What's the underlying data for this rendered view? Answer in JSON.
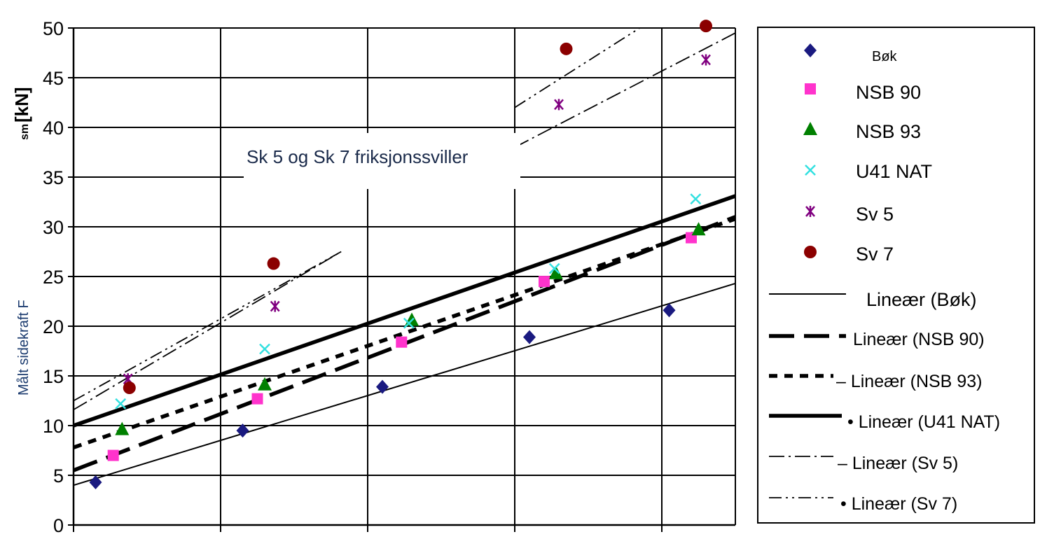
{
  "chart_data": {
    "type": "scatter",
    "ylabel": "Målt sidekraft F",
    "ylabel_sub": "sm",
    "ylabel_unit": "[kN]",
    "ylim": [
      0,
      50
    ],
    "yticks": [
      0,
      5,
      10,
      15,
      20,
      25,
      30,
      35,
      40,
      45,
      50
    ],
    "xlim": [
      0,
      4.5
    ],
    "grid": true,
    "legend_position": "right",
    "annotation": "Sk 5 og Sk 7 friksjonssviller",
    "series": [
      {
        "name": "Bøk",
        "marker": "diamond",
        "color": "#1a1a80",
        "x": [
          0.15,
          1.15,
          2.1,
          3.1,
          4.05
        ],
        "y": [
          4.3,
          9.5,
          13.9,
          18.9,
          21.6
        ]
      },
      {
        "name": "NSB 90",
        "marker": "square",
        "color": "#ff33cc",
        "x": [
          0.27,
          1.25,
          2.23,
          3.2,
          4.2
        ],
        "y": [
          7.0,
          12.7,
          18.4,
          24.5,
          28.9
        ]
      },
      {
        "name": "NSB 93",
        "marker": "triangle",
        "color": "#008000",
        "x": [
          0.33,
          1.3,
          2.3,
          3.28,
          4.25
        ],
        "y": [
          9.6,
          14.1,
          20.6,
          25.3,
          29.7
        ]
      },
      {
        "name": "U41 NAT",
        "marker": "x",
        "color": "#33e0e0",
        "x": [
          0.32,
          1.3,
          2.28,
          3.27,
          4.23
        ],
        "y": [
          12.2,
          17.7,
          20.3,
          25.8,
          32.8
        ]
      },
      {
        "name": "Sv 5",
        "marker": "asterisk",
        "color": "#800080",
        "x": [
          0.37,
          1.37,
          3.3,
          4.3
        ],
        "y": [
          14.7,
          22.0,
          42.3,
          46.8
        ]
      },
      {
        "name": "Sv 7",
        "marker": "circle",
        "color": "#8b0000",
        "x": [
          0.38,
          1.36,
          3.35,
          4.3
        ],
        "y": [
          13.8,
          26.3,
          47.9,
          50.2
        ]
      }
    ],
    "trendlines": [
      {
        "name": "Lineær (Bøk)",
        "style": "thin",
        "x": [
          0,
          4.5
        ],
        "y": [
          4.0,
          24.3
        ]
      },
      {
        "name": "Lineær (NSB 90)",
        "style": "longdash",
        "x": [
          0,
          4.5
        ],
        "y": [
          5.5,
          31.0
        ]
      },
      {
        "name": "– Lineær (NSB 93)",
        "style": "dotted",
        "x": [
          0,
          4.5
        ],
        "y": [
          7.8,
          30.8
        ]
      },
      {
        "name": "• Lineær (U41 NAT)",
        "style": "thick",
        "x": [
          0,
          4.5
        ],
        "y": [
          10.0,
          33.1
        ]
      },
      {
        "name": "– Lineær (Sv 5)",
        "style": "dashdot",
        "segments": [
          {
            "x": [
              0,
              1.82
            ],
            "y": [
              11.6,
              27.5
            ]
          },
          {
            "x": [
              3.0,
              4.5
            ],
            "y": [
              38.0,
              49.5
            ]
          }
        ]
      },
      {
        "name": "• Lineær (Sv 7)",
        "style": "dashdotdot",
        "segments": [
          {
            "x": [
              0,
              1.82
            ],
            "y": [
              12.5,
              27.5
            ]
          },
          {
            "x": [
              3.0,
              3.85
            ],
            "y": [
              42.0,
              50.0
            ]
          }
        ]
      }
    ]
  }
}
